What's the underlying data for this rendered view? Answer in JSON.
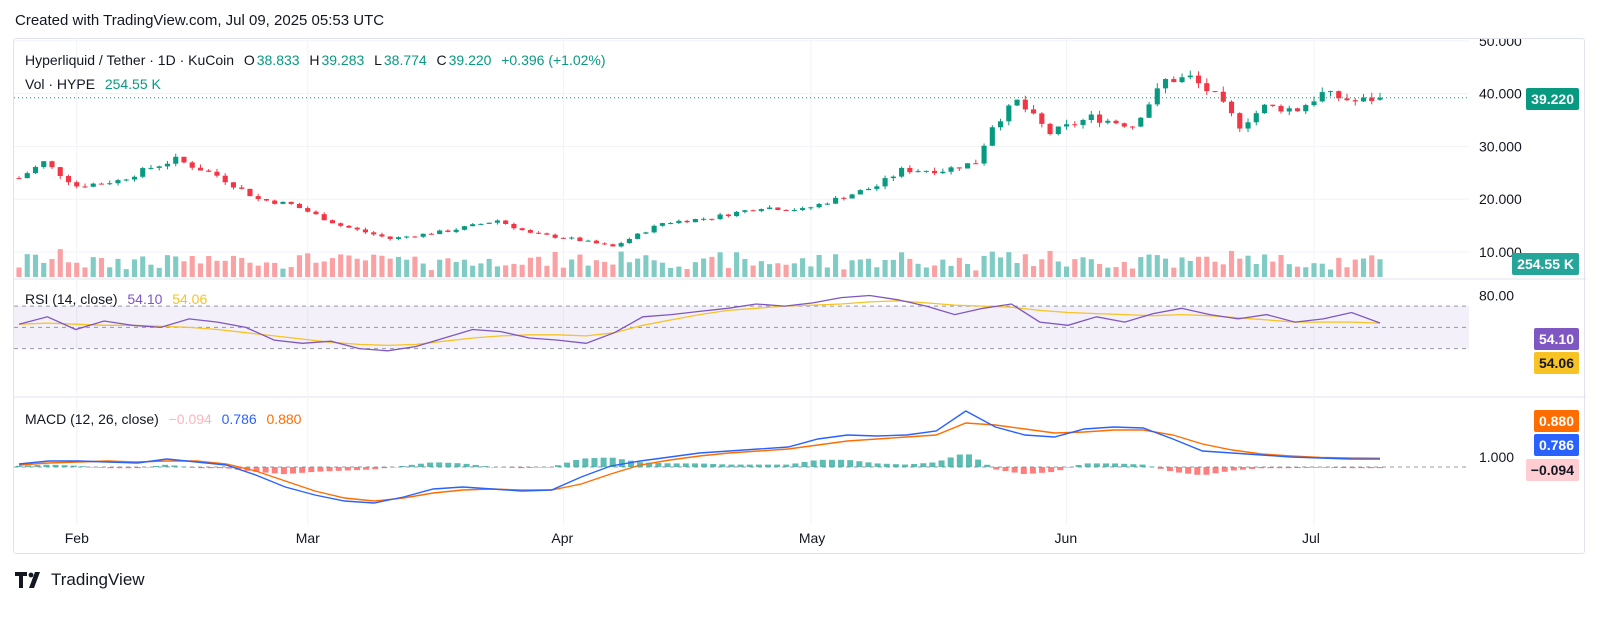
{
  "header": {
    "created_with": "Created with TradingView.com, Jul 09, 2025 05:53 UTC"
  },
  "footer": {
    "brand": "TradingView"
  },
  "legend": {
    "symbol": "Hyperliquid / Tether · 1D · KuCoin",
    "open_label": "O",
    "open": "38.833",
    "high_label": "H",
    "high": "39.283",
    "low_label": "L",
    "low": "38.774",
    "close_label": "C",
    "close": "39.220",
    "change": "+0.396 (+1.02%)",
    "vol_label": "Vol · HYPE",
    "vol": "254.55 K",
    "rsi_label": "RSI (14, close)",
    "rsi_value": "54.10",
    "rsi_ma_value": "54.06",
    "macd_label": "MACD (12, 26, close)",
    "macd_hist": "−0.094",
    "macd_line": "0.786",
    "macd_signal": "0.880"
  },
  "price_axis": {
    "ticks": [
      "50.000",
      "40.000",
      "30.000",
      "20.000",
      "10.000"
    ],
    "last_price": "39.220",
    "last_volume": "254.55 K"
  },
  "rsi_axis": {
    "ticks": [
      "80.00"
    ],
    "rsi_badge": "54.10",
    "rsi_ma_badge": "54.06"
  },
  "macd_axis": {
    "ticks": [
      "1.000"
    ],
    "signal_badge": "0.880",
    "macd_badge": "0.786",
    "hist_badge": "−0.094"
  },
  "time_axis": {
    "labels": [
      "Feb",
      "Mar",
      "Apr",
      "May",
      "Jun",
      "Jul"
    ]
  },
  "colors": {
    "up": "#089981",
    "down": "#f23645",
    "rsi": "#7e57c2",
    "rsi_ma": "#f7c325",
    "macd": "#2962ff",
    "signal": "#ff6d00",
    "hist_neg": "#ffcdd2",
    "vol_badge": "#26a69a"
  },
  "chart_data": [
    {
      "type": "candlestick",
      "title": "Hyperliquid / Tether · 1D · KuCoin",
      "x_range": [
        "2025-01-25",
        "2025-07-09"
      ],
      "ylim": [
        0,
        52
      ],
      "y_ticks": [
        10,
        20,
        30,
        40,
        50
      ],
      "approx_close_path": [
        {
          "x": "2025-01-25",
          "y": 24.0
        },
        {
          "x": "2025-01-28",
          "y": 27.0
        },
        {
          "x": "2025-02-01",
          "y": 22.5
        },
        {
          "x": "2025-02-06",
          "y": 23.5
        },
        {
          "x": "2025-02-10",
          "y": 26.0
        },
        {
          "x": "2025-02-13",
          "y": 27.5
        },
        {
          "x": "2025-02-18",
          "y": 24.5
        },
        {
          "x": "2025-02-23",
          "y": 20.0
        },
        {
          "x": "2025-02-27",
          "y": 19.0
        },
        {
          "x": "2025-03-05",
          "y": 15.0
        },
        {
          "x": "2025-03-11",
          "y": 12.5
        },
        {
          "x": "2025-03-18",
          "y": 14.0
        },
        {
          "x": "2025-03-24",
          "y": 16.0
        },
        {
          "x": "2025-03-28",
          "y": 13.5
        },
        {
          "x": "2025-04-02",
          "y": 12.5
        },
        {
          "x": "2025-04-07",
          "y": 11.0
        },
        {
          "x": "2025-04-13",
          "y": 15.5
        },
        {
          "x": "2025-04-19",
          "y": 16.5
        },
        {
          "x": "2025-04-25",
          "y": 18.5
        },
        {
          "x": "2025-04-30",
          "y": 18.0
        },
        {
          "x": "2025-05-05",
          "y": 20.5
        },
        {
          "x": "2025-05-09",
          "y": 22.5
        },
        {
          "x": "2025-05-12",
          "y": 25.5
        },
        {
          "x": "2025-05-17",
          "y": 25.5
        },
        {
          "x": "2025-05-21",
          "y": 27.0
        },
        {
          "x": "2025-05-23",
          "y": 34.0
        },
        {
          "x": "2025-05-26",
          "y": 38.5
        },
        {
          "x": "2025-05-30",
          "y": 32.5
        },
        {
          "x": "2025-06-04",
          "y": 35.5
        },
        {
          "x": "2025-06-09",
          "y": 34.0
        },
        {
          "x": "2025-06-13",
          "y": 42.5
        },
        {
          "x": "2025-06-16",
          "y": 43.0
        },
        {
          "x": "2025-06-19",
          "y": 39.5
        },
        {
          "x": "2025-06-22",
          "y": 34.0
        },
        {
          "x": "2025-06-25",
          "y": 37.5
        },
        {
          "x": "2025-06-29",
          "y": 37.0
        },
        {
          "x": "2025-07-02",
          "y": 40.0
        },
        {
          "x": "2025-07-06",
          "y": 38.5
        },
        {
          "x": "2025-07-09",
          "y": 39.22
        }
      ],
      "last": {
        "open": 38.833,
        "high": 39.283,
        "low": 38.774,
        "close": 39.22
      }
    },
    {
      "type": "bar",
      "title": "Vol · HYPE",
      "last_value": "254.55 K"
    },
    {
      "type": "line",
      "title": "RSI (14, close)",
      "series": [
        {
          "name": "RSI",
          "values": [
            53,
            60,
            48,
            56,
            52,
            50,
            58,
            55,
            50,
            38,
            35,
            37,
            30,
            28,
            32,
            40,
            48,
            46,
            40,
            38,
            35,
            45,
            60,
            62,
            65,
            68,
            72,
            70,
            73,
            78,
            80,
            76,
            70,
            62,
            68,
            72,
            55,
            52,
            60,
            55,
            63,
            68,
            62,
            58,
            62,
            55,
            58,
            64,
            54.1
          ]
        },
        {
          "name": "RSI MA",
          "values": [
            53,
            54,
            53,
            52,
            52,
            51,
            50,
            48,
            45,
            42,
            39,
            36,
            34,
            33,
            34,
            37,
            40,
            42,
            43,
            43,
            42,
            45,
            52,
            57,
            62,
            66,
            68,
            70,
            71,
            72,
            74,
            75,
            73,
            71,
            70,
            69,
            66,
            64,
            63,
            62,
            61,
            62,
            61,
            59,
            57,
            55,
            55,
            55,
            54.06
          ]
        }
      ],
      "y_ticks": [
        80
      ],
      "bands": [
        70,
        50,
        30
      ]
    },
    {
      "type": "line",
      "title": "MACD (12, 26, close)",
      "series": [
        {
          "name": "MACD",
          "values": [
            0.3,
            0.6,
            0.6,
            0.5,
            0.4,
            0.8,
            0.5,
            0.2,
            -0.8,
            -2.0,
            -2.8,
            -3.4,
            -3.6,
            -3.0,
            -2.2,
            -2.0,
            -2.2,
            -2.4,
            -2.3,
            -1.0,
            0.1,
            0.6,
            1.0,
            1.4,
            1.6,
            1.8,
            2.0,
            2.8,
            3.2,
            3.1,
            3.2,
            3.6,
            5.6,
            4.0,
            3.2,
            3.0,
            3.8,
            4.0,
            3.9,
            2.8,
            1.6,
            1.4,
            1.2,
            1.0,
            0.9,
            0.8,
            0.786
          ]
        },
        {
          "name": "Signal",
          "values": [
            0.2,
            0.4,
            0.5,
            0.6,
            0.5,
            0.6,
            0.6,
            0.3,
            -0.4,
            -1.4,
            -2.4,
            -3.1,
            -3.4,
            -3.1,
            -2.6,
            -2.3,
            -2.2,
            -2.3,
            -2.3,
            -1.7,
            -0.7,
            0.2,
            0.7,
            1.1,
            1.4,
            1.6,
            1.8,
            2.2,
            2.6,
            2.8,
            3.0,
            3.2,
            4.4,
            4.2,
            3.8,
            3.4,
            3.5,
            3.7,
            3.7,
            3.2,
            2.3,
            1.7,
            1.3,
            1.1,
            0.95,
            0.9,
            0.88
          ]
        }
      ],
      "y_ticks": [
        1.0
      ],
      "last_histogram": -0.094
    }
  ]
}
